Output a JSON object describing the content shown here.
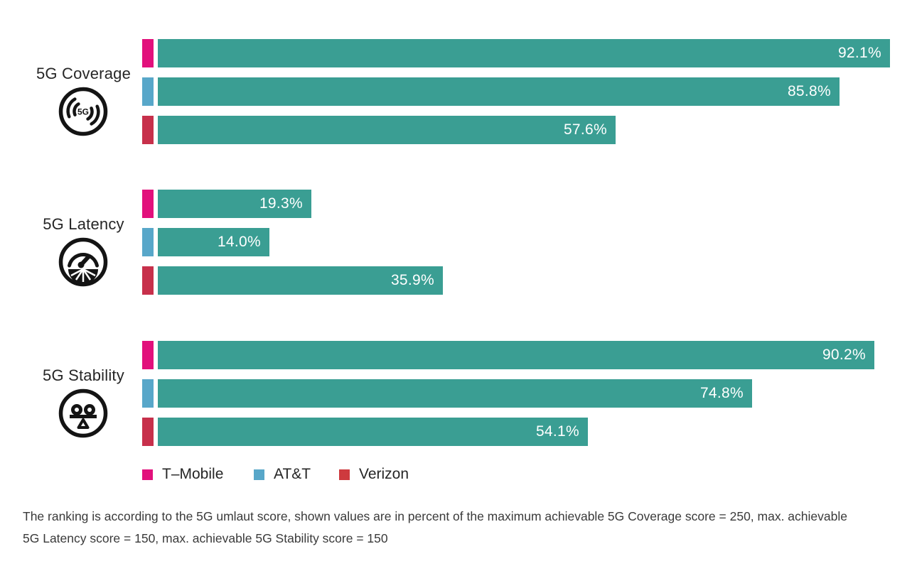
{
  "chart_data": {
    "type": "bar",
    "orientation": "horizontal",
    "unit": "percent",
    "xlim": [
      0,
      100
    ],
    "grid": false,
    "value_labels": "inside-end",
    "legend_position": "bottom",
    "bar_color": "#3A9E93",
    "value_label_color": "#FFFFFF",
    "carriers": [
      {
        "name": "T–Mobile",
        "color": "#E2117C"
      },
      {
        "name": "AT&T",
        "color": "#58A7C9"
      },
      {
        "name": "Verizon",
        "color": "#C7304B"
      }
    ],
    "groups": [
      {
        "label": "5G Coverage",
        "icon": "5g-coverage-signal-icon",
        "bars": [
          {
            "carrier": "T–Mobile",
            "value": 92.1,
            "label": "92.1%"
          },
          {
            "carrier": "AT&T",
            "value": 85.8,
            "label": "85.8%"
          },
          {
            "carrier": "Verizon",
            "value": 57.6,
            "label": "57.6%"
          }
        ]
      },
      {
        "label": "5G Latency",
        "icon": "latency-gauge-icon",
        "bars": [
          {
            "carrier": "T–Mobile",
            "value": 19.3,
            "label": "19.3%"
          },
          {
            "carrier": "AT&T",
            "value": 14.0,
            "label": "14.0%"
          },
          {
            "carrier": "Verizon",
            "value": 35.9,
            "label": "35.9%"
          }
        ]
      },
      {
        "label": "5G Stability",
        "icon": "stability-balance-icon",
        "bars": [
          {
            "carrier": "T–Mobile",
            "value": 90.2,
            "label": "90.2%"
          },
          {
            "carrier": "AT&T",
            "value": 74.8,
            "label": "74.8%"
          },
          {
            "carrier": "Verizon",
            "value": 54.1,
            "label": "54.1%"
          }
        ]
      }
    ]
  },
  "legend": {
    "items": [
      {
        "label": "T–Mobile",
        "color": "#E2117C"
      },
      {
        "label": "AT&T",
        "color": "#58A7C9"
      },
      {
        "label": "Verizon",
        "color": "#CE3A3E"
      }
    ]
  },
  "footnote": "The ranking is according to the 5G umlaut score, shown values are in percent of the maximum achievable 5G Coverage score = 250, max. achievable 5G Latency score = 150, max. achievable 5G Stability score = 150"
}
